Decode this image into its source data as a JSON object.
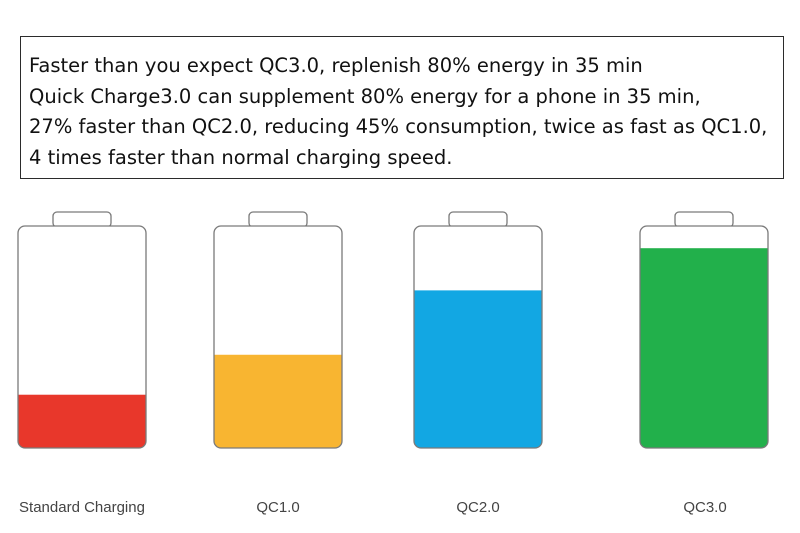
{
  "text_block": {
    "lines": [
      "Faster than you expect QC3.0, replenish 80% energy in 35 min",
      "Quick Charge3.0 can supplement 80% energy for a phone in 35 min,",
      "27% faster than QC2.0, reducing 45% consumption, twice as fast as QC1.0,",
      "4 times faster than normal charging speed."
    ]
  },
  "chart_data": {
    "type": "bar",
    "style": "battery fill levels",
    "categories": [
      "Standard Charging",
      "QC1.0",
      "QC2.0",
      "QC3.0"
    ],
    "values": [
      0.24,
      0.42,
      0.71,
      0.9
    ],
    "colors": [
      "#e8372b",
      "#f8b531",
      "#12a7e3",
      "#22b04b"
    ],
    "battery_outline_color": "#7a7a7a",
    "title": "",
    "xlabel": "",
    "ylabel": "",
    "ylim": [
      0,
      1
    ],
    "grid": false
  }
}
